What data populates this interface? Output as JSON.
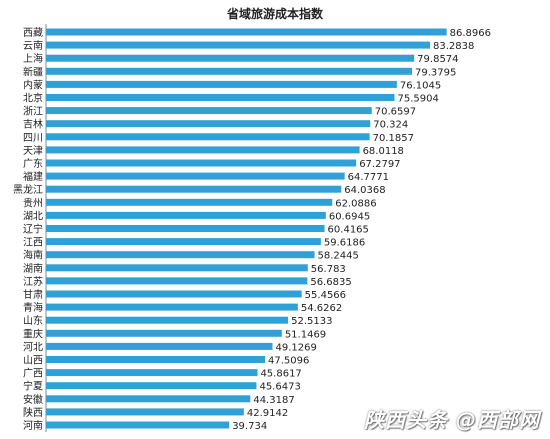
{
  "chart_data": {
    "type": "bar",
    "orientation": "horizontal",
    "title": "省域旅游成本指数",
    "categories": [
      "西藏",
      "云南",
      "上海",
      "新疆",
      "内蒙",
      "北京",
      "浙江",
      "吉林",
      "四川",
      "天津",
      "广东",
      "福建",
      "黑龙江",
      "贵州",
      "湖北",
      "辽宁",
      "江西",
      "海南",
      "湖南",
      "江苏",
      "甘肃",
      "青海",
      "山东",
      "重庆",
      "河北",
      "山西",
      "广西",
      "宁夏",
      "安徽",
      "陕西",
      "河南"
    ],
    "values": [
      86.8966,
      83.2838,
      79.8574,
      79.3795,
      76.1045,
      75.5904,
      70.6597,
      70.324,
      70.1857,
      68.0118,
      67.2797,
      64.7771,
      64.0368,
      62.0886,
      60.6945,
      60.4165,
      59.6186,
      58.2445,
      56.783,
      56.6835,
      55.4566,
      54.6262,
      52.5133,
      51.1469,
      49.1269,
      47.5096,
      45.8617,
      45.6473,
      44.3187,
      42.9142,
      39.734
    ],
    "value_labels": [
      "86.8966",
      "83.2838",
      "79.8574",
      "79.3795",
      "76.1045",
      "75.5904",
      "70.6597",
      "70.324",
      "70.1857",
      "68.0118",
      "67.2797",
      "64.7771",
      "64.0368",
      "62.0886",
      "60.6945",
      "60.4165",
      "59.6186",
      "58.2445",
      "56.783",
      "56.6835",
      "55.4566",
      "54.6262",
      "52.5133",
      "51.1469",
      "49.1269",
      "47.5096",
      "45.8617",
      "45.6473",
      "44.3187",
      "42.9142",
      "39.734"
    ],
    "xlim": [
      0,
      95
    ],
    "grid": false,
    "legend": "none",
    "bar_color": "#31a0d6",
    "label_color": "#222222"
  },
  "watermark": "陕西头条 @西部网"
}
